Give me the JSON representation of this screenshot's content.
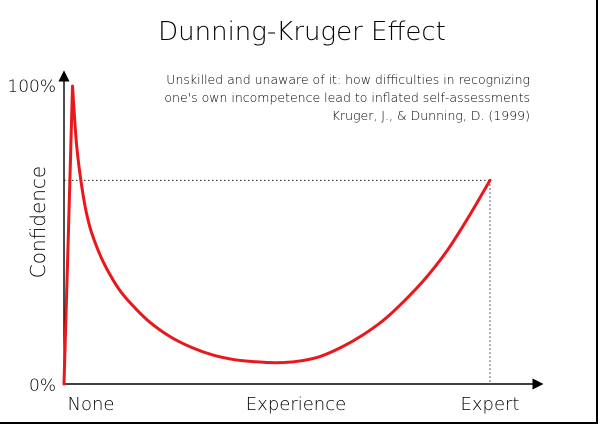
{
  "chart_data": {
    "type": "line",
    "title": "Dunning-Kruger Effect",
    "annotation": [
      "Unskilled and unaware of it: how difficulties in recognizing",
      "one's own incompetence lead to inflated self-assessments",
      "Kruger, J., & Dunning, D. (1999)"
    ],
    "xlabel": "",
    "ylabel": "Confidence",
    "x_tick_labels": [
      "None",
      "Experience",
      "Expert"
    ],
    "y_tick_labels": [
      "0%",
      "100%"
    ],
    "xlim": [
      0,
      100
    ],
    "ylim": [
      0,
      100
    ],
    "reference_level": 67,
    "line_color": "#e8181c",
    "series": [
      {
        "x": [
          0,
          1,
          2,
          3,
          4.5,
          6,
          8,
          10,
          13,
          16,
          20,
          25,
          30,
          35,
          40,
          45,
          50,
          55,
          60,
          65,
          70,
          75,
          80,
          85,
          90,
          95,
          100
        ],
        "y": [
          0,
          48,
          98,
          78,
          62,
          52,
          44,
          38,
          31,
          26,
          20.5,
          15.5,
          12,
          9.5,
          8,
          7.3,
          7,
          7.5,
          9,
          12,
          16,
          21,
          27.5,
          35,
          44,
          55,
          67
        ]
      }
    ]
  }
}
